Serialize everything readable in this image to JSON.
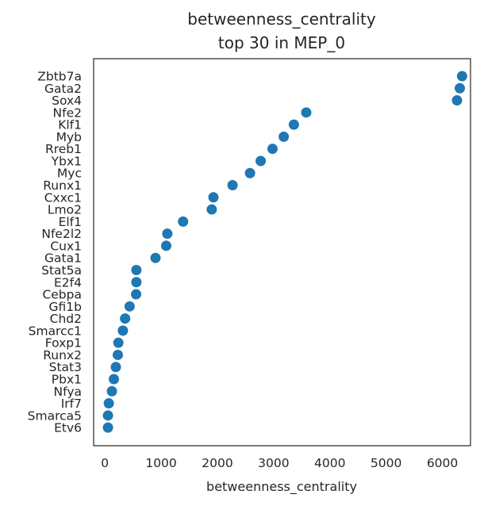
{
  "chart_data": {
    "type": "scatter",
    "title": "betweenness_centrality",
    "subtitle": "top 30 in MEP_0",
    "xlabel": "betweenness_centrality",
    "ylabel": "",
    "xlim": [
      -200,
      6500
    ],
    "xticks": [
      0,
      1000,
      2000,
      3000,
      4000,
      5000,
      6000
    ],
    "grid": false,
    "marker_color": "#1f77b4",
    "categories": [
      "Zbtb7a",
      "Gata2",
      "Sox4",
      "Nfe2",
      "Klf1",
      "Myb",
      "Rreb1",
      "Ybx1",
      "Myc",
      "Runx1",
      "Cxxc1",
      "Lmo2",
      "Elf1",
      "Nfe2l2",
      "Cux1",
      "Gata1",
      "Stat5a",
      "E2f4",
      "Cebpa",
      "Gfi1b",
      "Chd2",
      "Smarcc1",
      "Foxp1",
      "Runx2",
      "Stat3",
      "Pbx1",
      "Nfya",
      "Irf7",
      "Smarca5",
      "Etv6"
    ],
    "values": [
      6350,
      6310,
      6260,
      3580,
      3360,
      3180,
      2980,
      2770,
      2580,
      2270,
      1930,
      1900,
      1390,
      1110,
      1090,
      900,
      560,
      560,
      555,
      440,
      360,
      320,
      240,
      230,
      195,
      160,
      125,
      70,
      55,
      55
    ]
  }
}
